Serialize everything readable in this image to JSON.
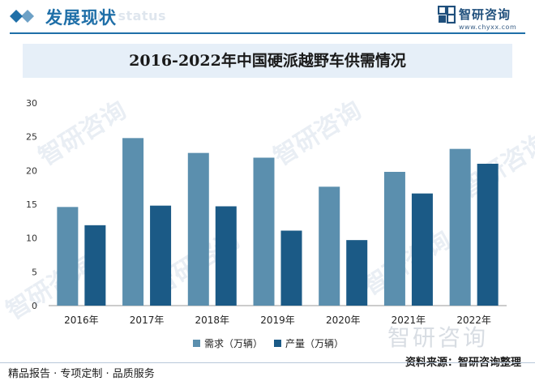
{
  "header": {
    "title": "发展现状",
    "watermark_text": "ent status"
  },
  "logo": {
    "name": "智研咨询",
    "url": "www.chyxx.com"
  },
  "chart_data": {
    "type": "bar",
    "title": "2016-2022年中国硬派越野车供需情况",
    "categories": [
      "2016年",
      "2017年",
      "2018年",
      "2019年",
      "2020年",
      "2021年",
      "2022年"
    ],
    "series": [
      {
        "name": "需求（万辆）",
        "values": [
          14.6,
          24.8,
          22.6,
          21.9,
          17.6,
          19.8,
          23.2
        ],
        "color": "#5b8fae"
      },
      {
        "name": "产量（万辆）",
        "values": [
          11.9,
          14.8,
          14.7,
          11.1,
          9.7,
          16.6,
          21.0
        ],
        "color": "#1b5a86"
      }
    ],
    "ylim": [
      0,
      30
    ],
    "yticks": [
      0,
      5,
      10,
      15,
      20,
      25,
      30
    ],
    "grid": false,
    "legend": "bottom"
  },
  "footer": {
    "left": "精品报告 · 专项定制 · 品质服务",
    "source": "资料来源：智研咨询整理"
  },
  "watermark": {
    "text": "智研咨询"
  }
}
